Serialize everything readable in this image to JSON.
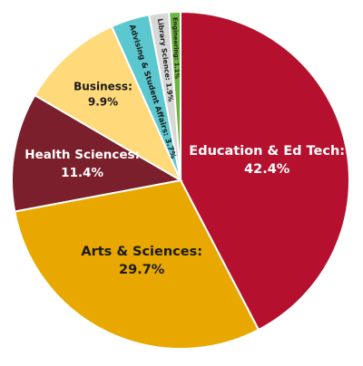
{
  "chart_data": {
    "type": "pie",
    "title": "",
    "start_angle_deg": 0,
    "direction": "clockwise",
    "slice_border_color": "#ffffff",
    "slices": [
      {
        "label": "Education & Ed Tech",
        "value": 42.4,
        "value_label": "42.4%",
        "color": "#B5112F",
        "label_color": "#ffffff",
        "label_style": "inside-horizontal"
      },
      {
        "label": "Arts & Sciences",
        "value": 29.7,
        "value_label": "29.7%",
        "color": "#E8A800",
        "label_color": "#1a1a1a",
        "label_style": "inside-horizontal"
      },
      {
        "label": "Health Sciences",
        "value": 11.4,
        "value_label": "11.4%",
        "color": "#7A1F2B",
        "label_color": "#ffffff",
        "label_style": "inside-horizontal"
      },
      {
        "label": "Business",
        "value": 9.9,
        "value_label": "9.9%",
        "color": "#FFD97A",
        "label_color": "#1a1a1a",
        "label_style": "inside-horizontal"
      },
      {
        "label": "Advising & Student Affairs",
        "value": 3.7,
        "value_label": "3.7%",
        "color": "#5BC8CF",
        "label_color": "#1a1a1a",
        "label_style": "inside-radial"
      },
      {
        "label": "Library Science",
        "value": 1.9,
        "value_label": "1.9%",
        "color": "#D7D7D7",
        "label_color": "#1a1a1a",
        "label_style": "inside-radial"
      },
      {
        "label": "Engineering",
        "value": 1.1,
        "value_label": "1.1%",
        "color": "#6DB33F",
        "label_color": "#1a1a1a",
        "label_style": "inside-radial"
      }
    ]
  }
}
